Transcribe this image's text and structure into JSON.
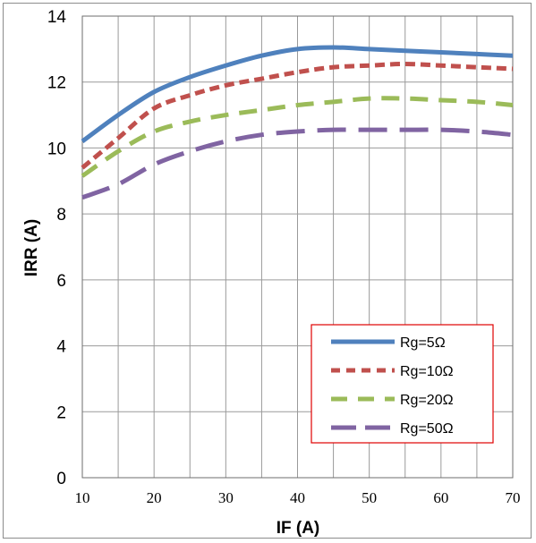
{
  "chart_data": {
    "type": "line",
    "title": "",
    "xlabel": "IF (A)",
    "ylabel": "IRR (A)",
    "xlim": [
      10,
      70
    ],
    "ylim": [
      0,
      14
    ],
    "x_ticks": [
      10,
      20,
      30,
      40,
      50,
      60,
      70
    ],
    "y_ticks": [
      0,
      2,
      4,
      6,
      8,
      10,
      12,
      14
    ],
    "grid": true,
    "legend_position": "bottom-right",
    "series": [
      {
        "name": "Rg=5Ω",
        "color": "#4f81bd",
        "dash": "solid",
        "x": [
          10,
          15,
          20,
          25,
          30,
          35,
          40,
          45,
          50,
          55,
          60,
          65,
          70
        ],
        "y": [
          10.2,
          11.0,
          11.7,
          12.15,
          12.5,
          12.8,
          13.0,
          13.05,
          13.0,
          12.95,
          12.9,
          12.85,
          12.8
        ]
      },
      {
        "name": "Rg=10Ω",
        "color": "#c0504d",
        "dash": "short",
        "x": [
          10,
          15,
          20,
          25,
          30,
          35,
          40,
          45,
          50,
          55,
          60,
          65,
          70
        ],
        "y": [
          9.4,
          10.3,
          11.2,
          11.6,
          11.9,
          12.1,
          12.3,
          12.45,
          12.5,
          12.55,
          12.5,
          12.45,
          12.4
        ]
      },
      {
        "name": "Rg=20Ω",
        "color": "#9bbb59",
        "dash": "medium",
        "x": [
          10,
          15,
          20,
          25,
          30,
          35,
          40,
          45,
          50,
          55,
          60,
          65,
          70
        ],
        "y": [
          9.15,
          9.9,
          10.5,
          10.8,
          11.0,
          11.15,
          11.3,
          11.4,
          11.5,
          11.5,
          11.45,
          11.4,
          11.3
        ]
      },
      {
        "name": "Rg=50Ω",
        "color": "#8064a2",
        "dash": "long",
        "x": [
          10,
          15,
          20,
          25,
          30,
          35,
          40,
          45,
          50,
          55,
          60,
          65,
          70
        ],
        "y": [
          8.5,
          8.9,
          9.5,
          9.9,
          10.2,
          10.4,
          10.5,
          10.55,
          10.55,
          10.55,
          10.55,
          10.5,
          10.4
        ]
      }
    ]
  }
}
